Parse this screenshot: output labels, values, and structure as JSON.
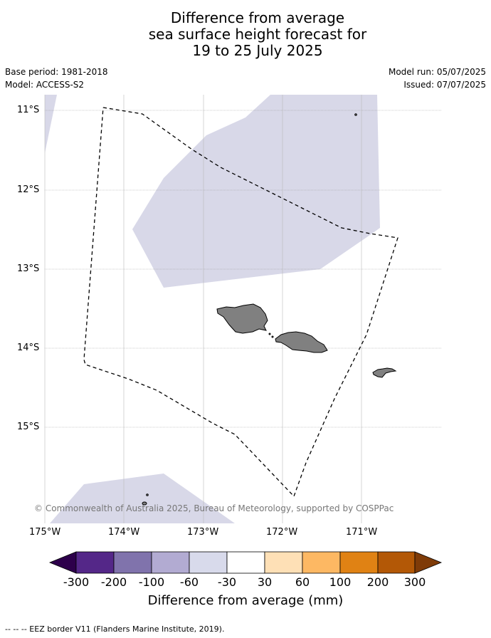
{
  "title": {
    "line1": "Difference from average",
    "line2": "sea surface height forecast for",
    "line3": "19 to 25 July 2025"
  },
  "meta": {
    "base_period": "Base period: 1981-2018",
    "model": "Model: ACCESS-S2",
    "model_run": "Model run: 05/07/2025",
    "issued": "Issued: 07/07/2025"
  },
  "map": {
    "lat_labels": [
      "11°S",
      "12°S",
      "13°S",
      "14°S",
      "15°S"
    ],
    "lon_labels": [
      "175°W",
      "174°W",
      "173°W",
      "172°W",
      "171°W"
    ],
    "copyright": "© Commonwealth of Australia 2025, Bureau of Meteorology, supported by COSPPac",
    "anomaly_fill_color": "#d8d8e8",
    "land_color": "#808080"
  },
  "colorbar": {
    "label": "Difference from average (mm)",
    "ticks": [
      "-300",
      "-200",
      "-100",
      "-60",
      "-30",
      "30",
      "60",
      "100",
      "200",
      "300"
    ],
    "colors": [
      "#2d004b",
      "#542788",
      "#8073ac",
      "#b2abd2",
      "#d8daeb",
      "#ffffff",
      "#fee0b6",
      "#fdb863",
      "#e08214",
      "#b35806",
      "#7f3b08"
    ]
  },
  "footer": {
    "eez_note": "-- -- -- EEZ border V11 (Flanders Marine Institute, 2019)."
  }
}
